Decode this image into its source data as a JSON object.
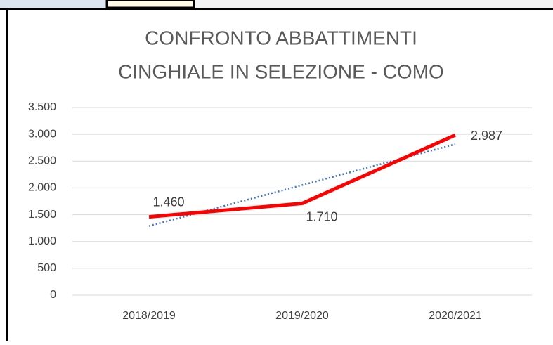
{
  "chart_data": {
    "type": "line",
    "title": [
      "CONFRONTO ABBATTIMENTI",
      "CINGHIALE IN SELEZIONE - COMO"
    ],
    "categories": [
      "2018/2019",
      "2019/2020",
      "2020/2021"
    ],
    "series": [
      {
        "name": "Abbattimenti",
        "color": "#ff0000",
        "values": [
          1460,
          1710,
          2987
        ],
        "value_labels": [
          "1.460",
          "1.710",
          "2.987"
        ]
      }
    ],
    "trendline": {
      "type": "linear",
      "color": "#4472c4"
    },
    "ylim": [
      0,
      3500
    ],
    "yticks": [
      {
        "value": 0,
        "label": "0"
      },
      {
        "value": 500,
        "label": "500"
      },
      {
        "value": 1000,
        "label": "1.000"
      },
      {
        "value": 1500,
        "label": "1.500"
      },
      {
        "value": 2000,
        "label": "2.000"
      },
      {
        "value": 2500,
        "label": "2.500"
      },
      {
        "value": 3000,
        "label": "3.000"
      },
      {
        "value": 3500,
        "label": "3.500"
      }
    ],
    "grid": true
  }
}
